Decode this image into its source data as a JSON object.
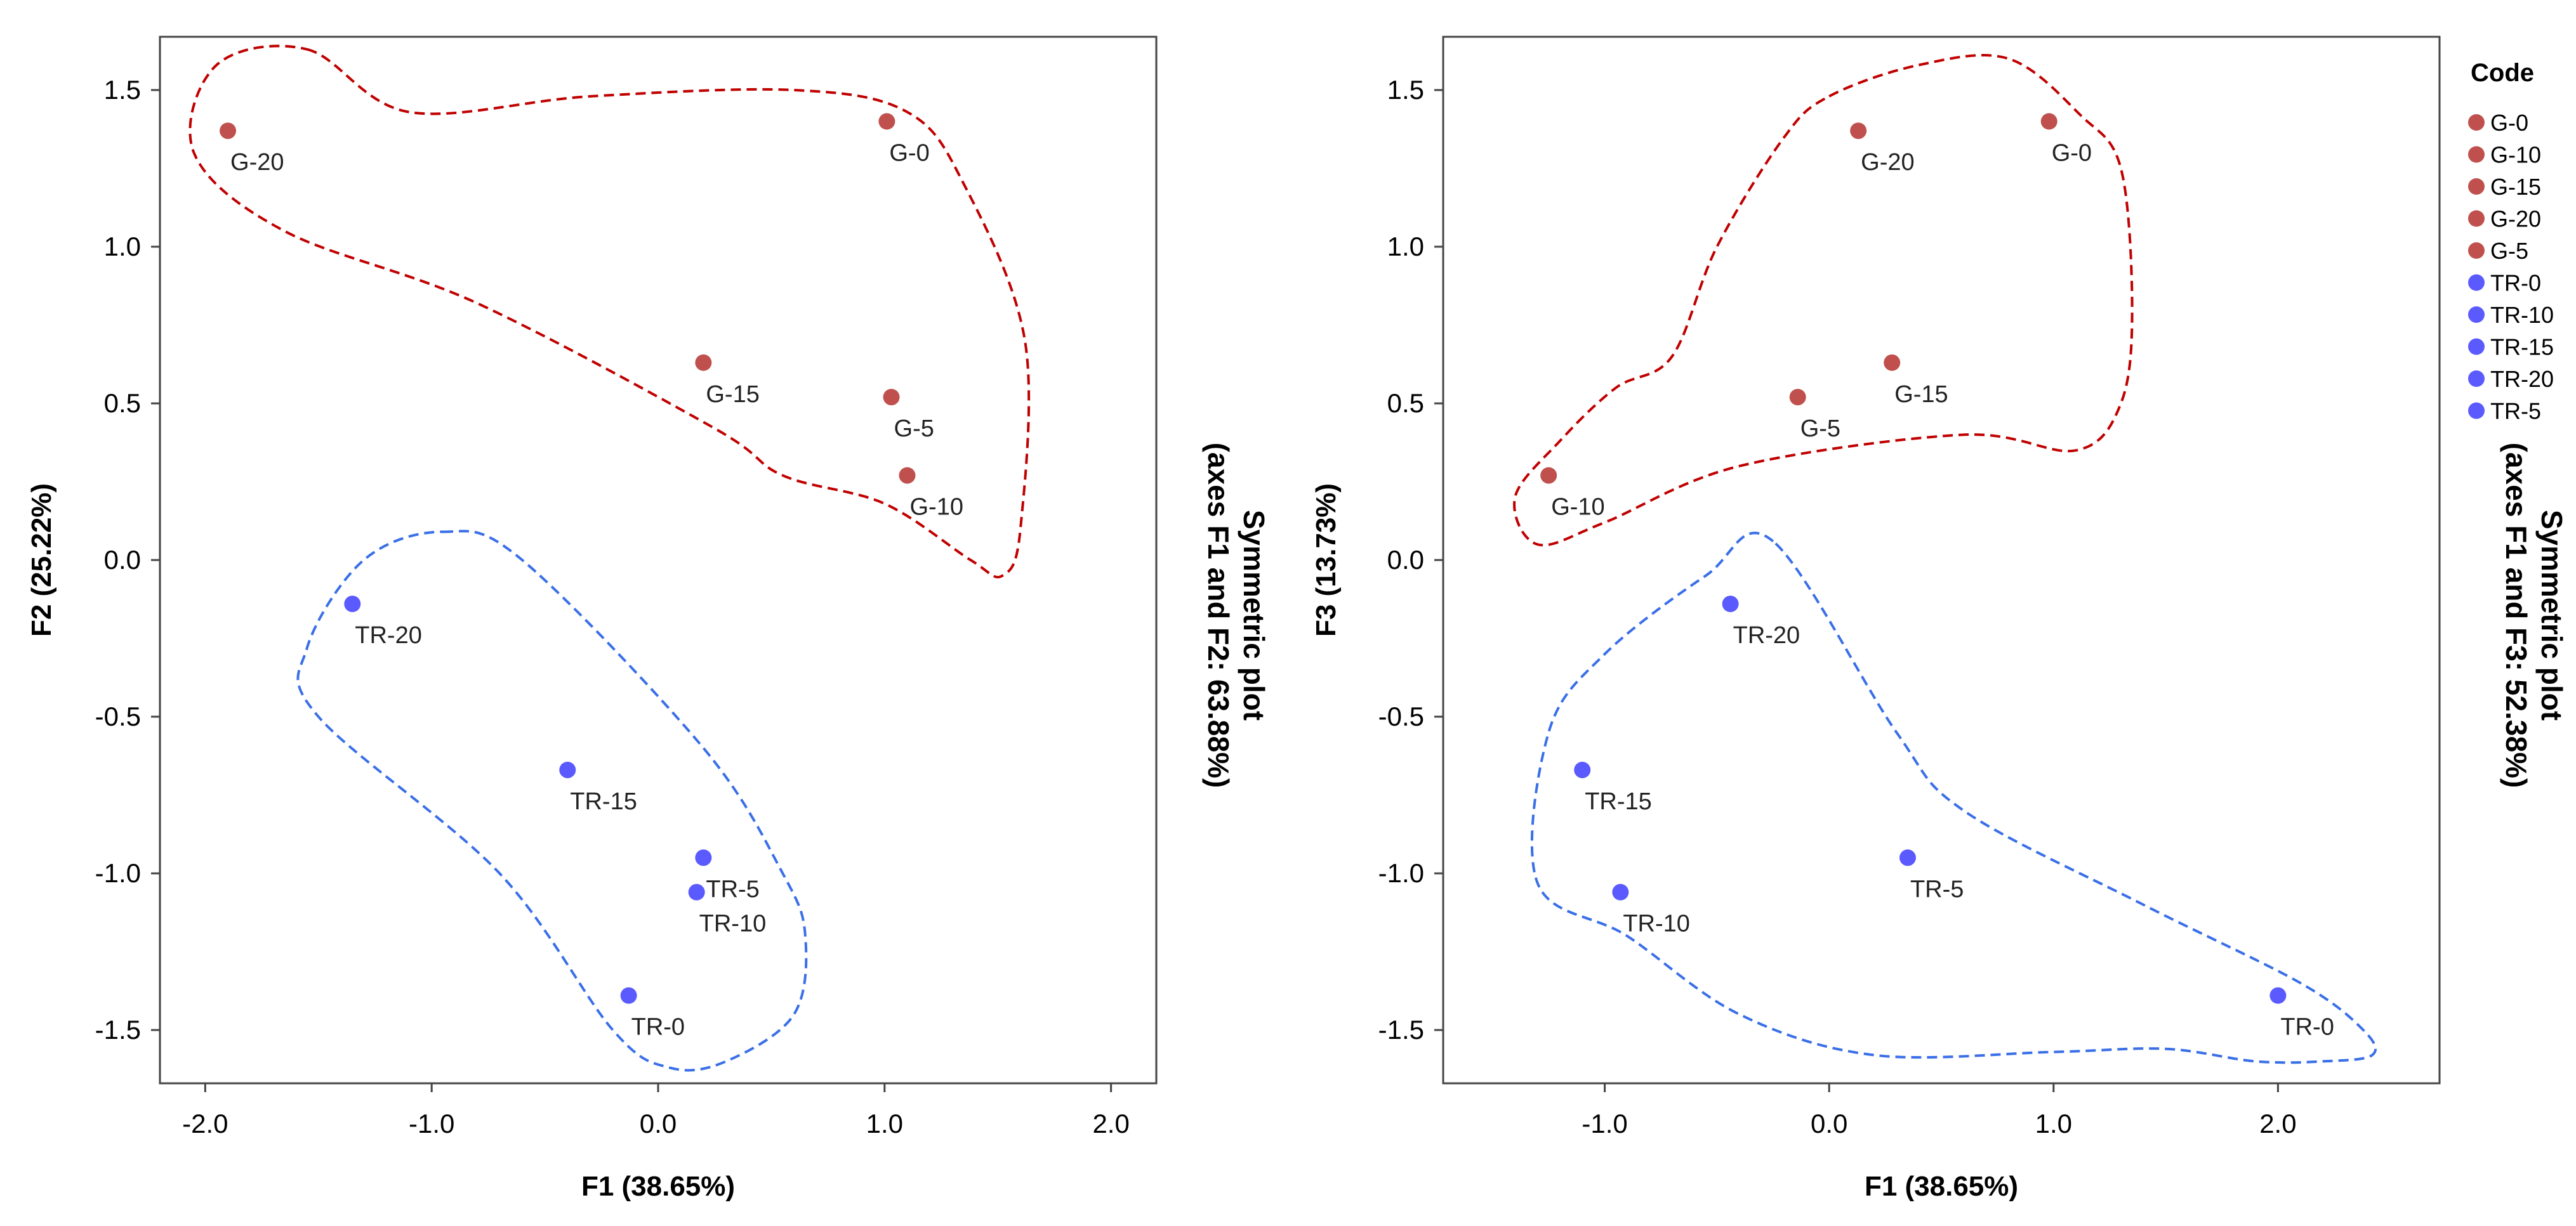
{
  "colors": {
    "g_group": "#c0504d",
    "tr_group": "#5a5aff",
    "g_hull": "#c00000",
    "tr_hull": "#3a6fe8"
  },
  "chart_data": [
    {
      "type": "scatter",
      "xlabel": "F1 (38.65%)",
      "ylabel": "F2 (25.22%)",
      "side_title_line1": "Symmetric plot",
      "side_title_line2": "(axes F1 and F2: 63.88%)",
      "xlim": [
        -2.2,
        2.2
      ],
      "ylim": [
        -1.67,
        1.67
      ],
      "xticks": [
        -2.0,
        -1.0,
        0.0,
        1.0,
        2.0
      ],
      "xtick_labels": [
        "-2.0",
        "-1.0",
        "0.0",
        "1.0",
        "2.0"
      ],
      "yticks": [
        1.5,
        1.0,
        0.5,
        0.0,
        -0.5,
        -1.0,
        -1.5
      ],
      "ytick_labels": [
        "1.5",
        "1.0",
        "0.5",
        "0.0",
        "-0.5",
        "-1.0",
        "-1.5"
      ],
      "points": [
        {
          "label": "G-20",
          "x": -1.9,
          "y": 1.37,
          "group": "G"
        },
        {
          "label": "G-0",
          "x": 1.01,
          "y": 1.4,
          "group": "G"
        },
        {
          "label": "G-15",
          "x": 0.2,
          "y": 0.63,
          "group": "G"
        },
        {
          "label": "G-5",
          "x": 1.03,
          "y": 0.52,
          "group": "G"
        },
        {
          "label": "G-10",
          "x": 1.1,
          "y": 0.27,
          "group": "G"
        },
        {
          "label": "TR-20",
          "x": -1.35,
          "y": -0.14,
          "group": "TR"
        },
        {
          "label": "TR-15",
          "x": -0.4,
          "y": -0.67,
          "group": "TR"
        },
        {
          "label": "TR-5",
          "x": 0.2,
          "y": -0.95,
          "group": "TR"
        },
        {
          "label": "TR-10",
          "x": 0.17,
          "y": -1.06,
          "group": "TR"
        },
        {
          "label": "TR-0",
          "x": -0.13,
          "y": -1.39,
          "group": "TR"
        }
      ],
      "hulls": {
        "G": [
          [
            -1.55,
            1.63
          ],
          [
            -1.1,
            1.43
          ],
          [
            -0.3,
            1.48
          ],
          [
            0.6,
            1.5
          ],
          [
            1.1,
            1.43
          ],
          [
            1.35,
            1.2
          ],
          [
            1.62,
            0.7
          ],
          [
            1.6,
            0.1
          ],
          [
            1.52,
            -0.05
          ],
          [
            1.38,
            0.0
          ],
          [
            1.0,
            0.18
          ],
          [
            0.55,
            0.27
          ],
          [
            0.25,
            0.42
          ],
          [
            -0.8,
            0.82
          ],
          [
            -1.65,
            1.05
          ],
          [
            -2.05,
            1.3
          ],
          [
            -1.95,
            1.58
          ]
        ],
        "TR": [
          [
            -0.95,
            0.09
          ],
          [
            -0.6,
            0.0
          ],
          [
            0.2,
            -0.6
          ],
          [
            0.55,
            -1.0
          ],
          [
            0.65,
            -1.2
          ],
          [
            0.6,
            -1.45
          ],
          [
            0.3,
            -1.6
          ],
          [
            0.05,
            -1.62
          ],
          [
            -0.2,
            -1.5
          ],
          [
            -0.7,
            -1.0
          ],
          [
            -1.5,
            -0.5
          ],
          [
            -1.55,
            -0.28
          ],
          [
            -1.3,
            0.0
          ]
        ]
      }
    },
    {
      "type": "scatter",
      "xlabel": "F1 (38.65%)",
      "ylabel": "F3 (13.73%)",
      "side_title_line1": "Symmetric plot",
      "side_title_line2": "(axes F1 and F3: 52.38%)",
      "xlim": [
        -1.72,
        2.72
      ],
      "ylim": [
        -1.67,
        1.67
      ],
      "xticks": [
        -1.0,
        0.0,
        1.0,
        2.0
      ],
      "xtick_labels": [
        "-1.0",
        "0.0",
        "1.0",
        "2.0"
      ],
      "yticks": [
        1.5,
        1.0,
        0.5,
        0.0,
        -0.5,
        -1.0,
        -1.5
      ],
      "ytick_labels": [
        "1.5",
        "1.0",
        "0.5",
        "0.0",
        "-0.5",
        "-1.0",
        "-1.5"
      ],
      "points": [
        {
          "label": "G-20",
          "x": 0.13,
          "y": 1.37,
          "group": "G"
        },
        {
          "label": "G-0",
          "x": 0.98,
          "y": 1.4,
          "group": "G"
        },
        {
          "label": "G-15",
          "x": 0.28,
          "y": 0.63,
          "group": "G"
        },
        {
          "label": "G-5",
          "x": -0.14,
          "y": 0.52,
          "group": "G"
        },
        {
          "label": "G-10",
          "x": -1.25,
          "y": 0.27,
          "group": "G"
        },
        {
          "label": "TR-20",
          "x": -0.44,
          "y": -0.14,
          "group": "TR"
        },
        {
          "label": "TR-15",
          "x": -1.1,
          "y": -0.67,
          "group": "TR"
        },
        {
          "label": "TR-5",
          "x": 0.35,
          "y": -0.95,
          "group": "TR"
        },
        {
          "label": "TR-10",
          "x": -0.93,
          "y": -1.06,
          "group": "TR"
        },
        {
          "label": "TR-0",
          "x": 2.0,
          "y": -1.39,
          "group": "TR"
        }
      ],
      "hulls": {
        "G": [
          [
            0.0,
            1.48
          ],
          [
            0.4,
            1.58
          ],
          [
            0.8,
            1.6
          ],
          [
            1.12,
            1.42
          ],
          [
            1.3,
            1.25
          ],
          [
            1.35,
            0.8
          ],
          [
            1.3,
            0.5
          ],
          [
            1.1,
            0.35
          ],
          [
            0.6,
            0.4
          ],
          [
            -0.4,
            0.3
          ],
          [
            -1.0,
            0.12
          ],
          [
            -1.3,
            0.05
          ],
          [
            -1.4,
            0.2
          ],
          [
            -1.2,
            0.38
          ],
          [
            -0.95,
            0.55
          ],
          [
            -0.7,
            0.65
          ],
          [
            -0.5,
            1.0
          ],
          [
            -0.2,
            1.35
          ]
        ],
        "TR": [
          [
            -0.25,
            0.06
          ],
          [
            -0.55,
            -0.05
          ],
          [
            -1.0,
            -0.3
          ],
          [
            -1.25,
            -0.55
          ],
          [
            -1.3,
            -1.03
          ],
          [
            -0.9,
            -1.2
          ],
          [
            -0.4,
            -1.45
          ],
          [
            0.2,
            -1.58
          ],
          [
            1.0,
            -1.57
          ],
          [
            1.5,
            -1.56
          ],
          [
            1.9,
            -1.6
          ],
          [
            2.2,
            -1.6
          ],
          [
            2.42,
            -1.58
          ],
          [
            2.38,
            -1.5
          ],
          [
            2.1,
            -1.35
          ],
          [
            1.4,
            -1.1
          ],
          [
            0.6,
            -0.8
          ],
          [
            0.3,
            -0.55
          ]
        ]
      }
    }
  ],
  "legend": {
    "title": "Code",
    "items": [
      {
        "label": "G-0",
        "group": "G"
      },
      {
        "label": "G-10",
        "group": "G"
      },
      {
        "label": "G-15",
        "group": "G"
      },
      {
        "label": "G-20",
        "group": "G"
      },
      {
        "label": "G-5",
        "group": "G"
      },
      {
        "label": "TR-0",
        "group": "TR"
      },
      {
        "label": "TR-10",
        "group": "TR"
      },
      {
        "label": "TR-15",
        "group": "TR"
      },
      {
        "label": "TR-20",
        "group": "TR"
      },
      {
        "label": "TR-5",
        "group": "TR"
      }
    ]
  }
}
